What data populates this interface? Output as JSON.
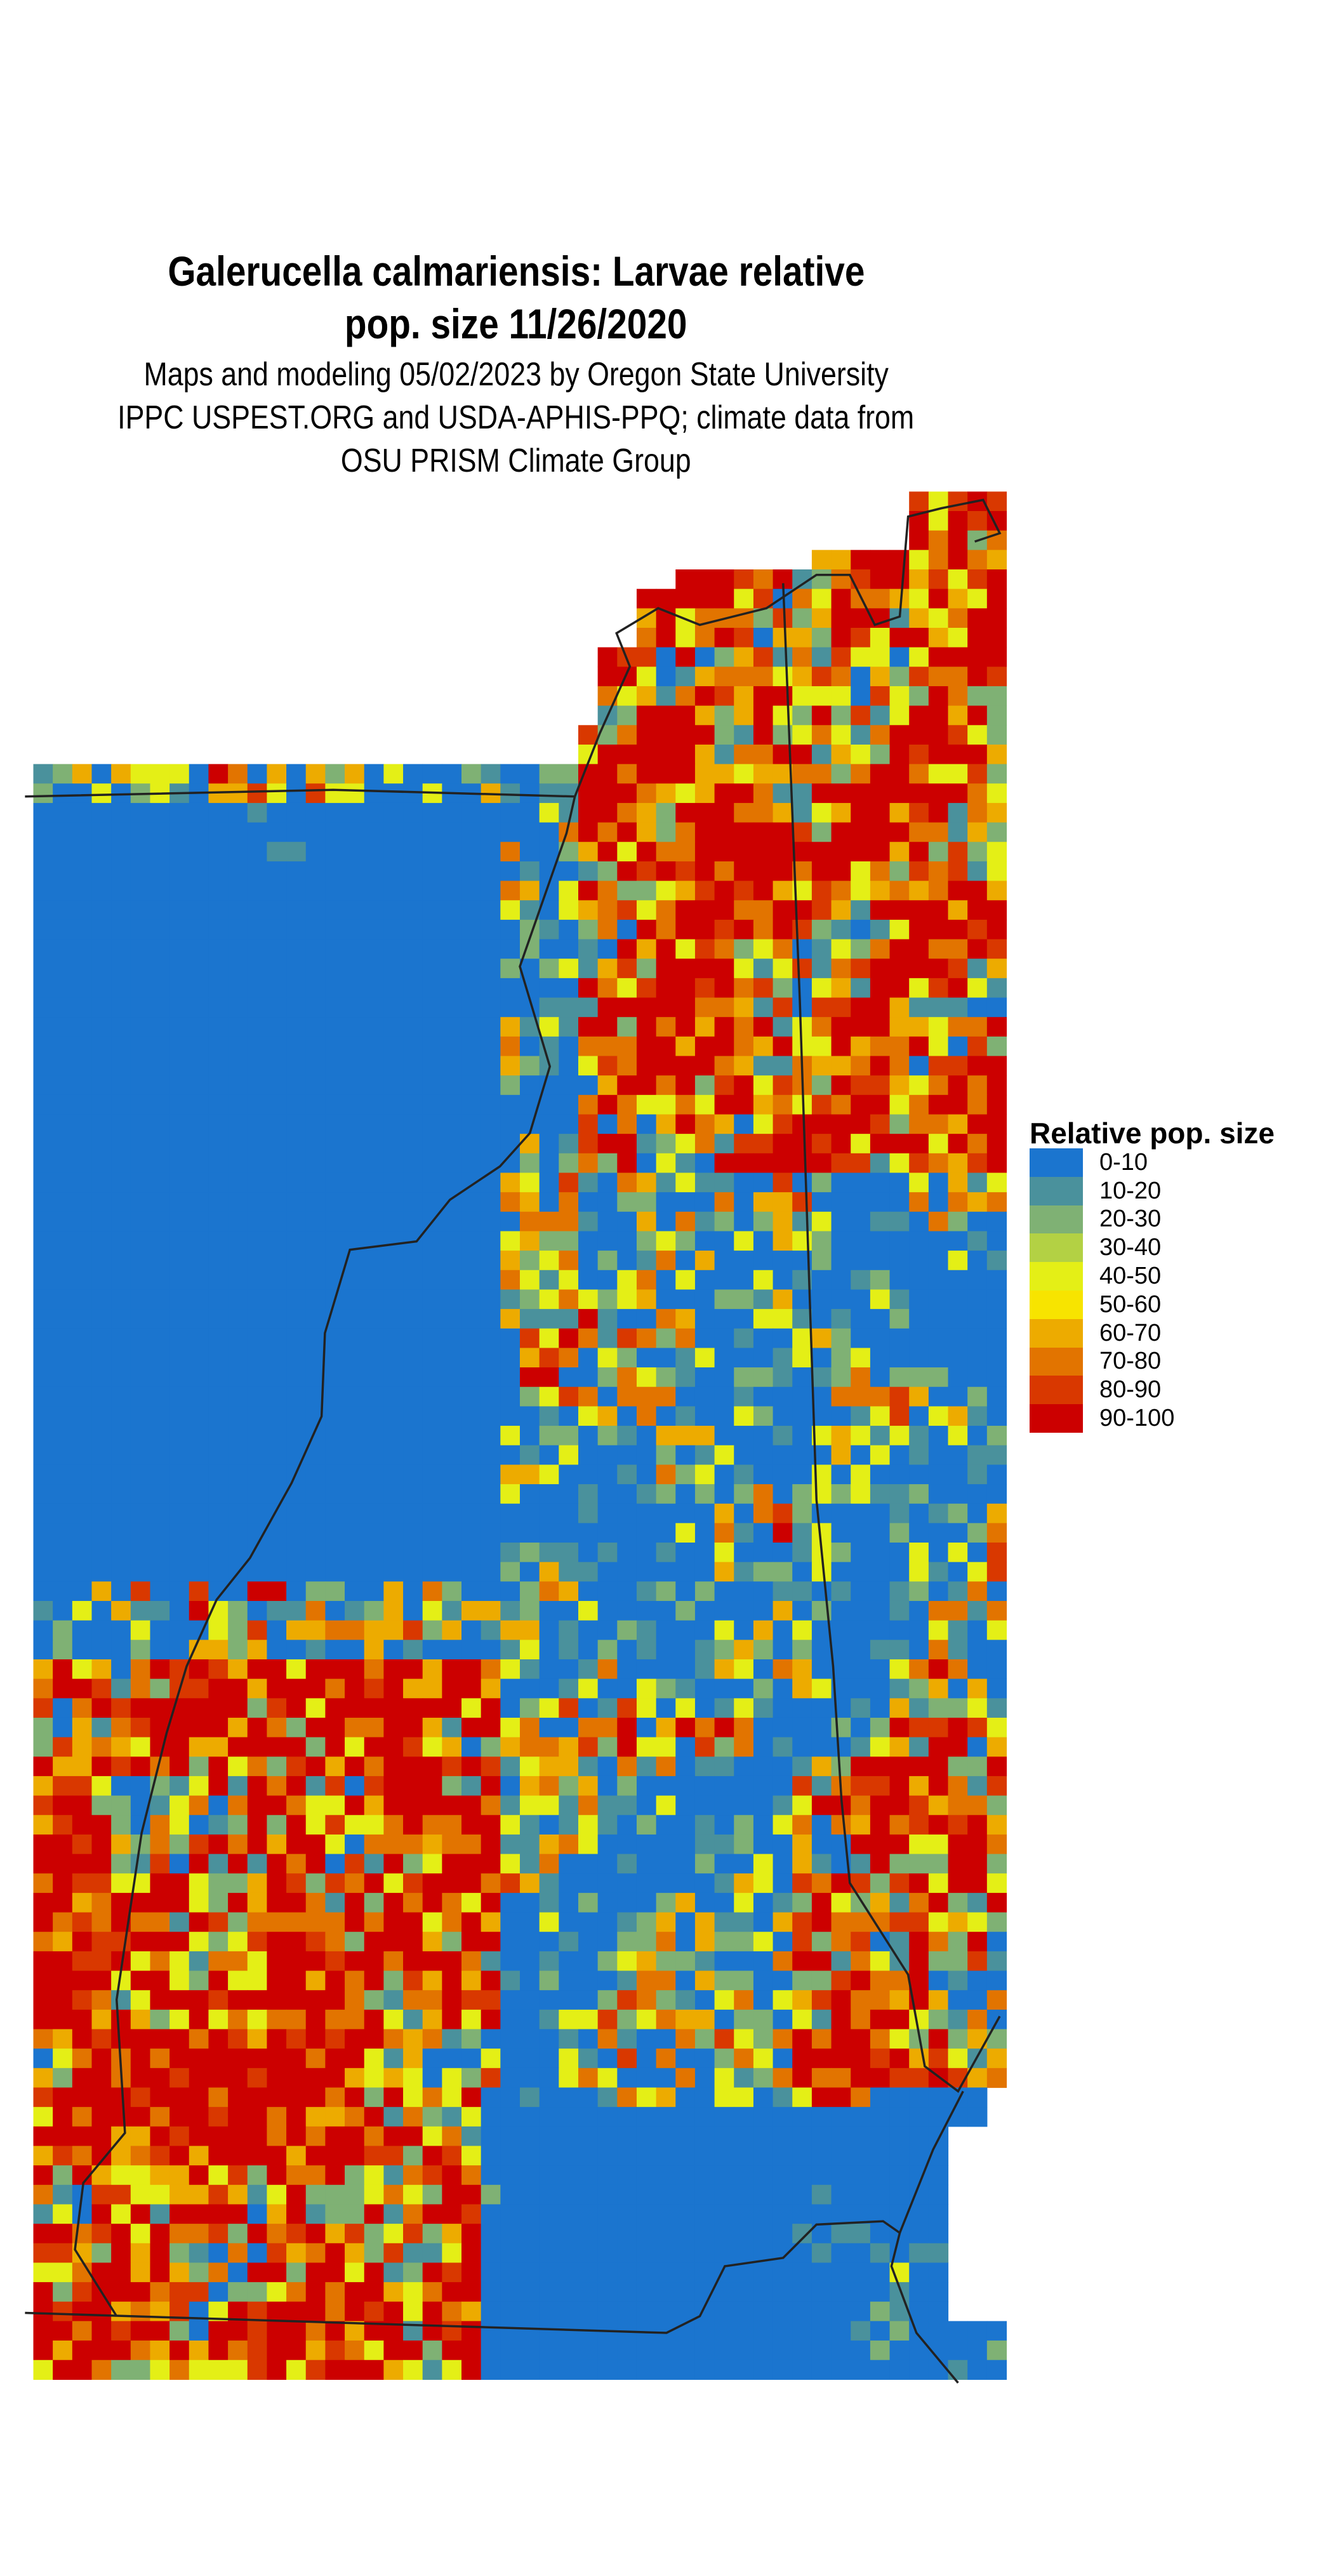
{
  "title": {
    "line1": "Galerucella calmariensis: Larvae relative",
    "line2": "pop. size 11/26/2020"
  },
  "subtitle": {
    "line1": "Maps and modeling 05/02/2023 by Oregon State University",
    "line2": "IPPC USPEST.ORG and USDA-APHIS-PPQ; climate data from",
    "line3": "OSU PRISM Climate Group"
  },
  "legend": {
    "title": "Relative pop. size",
    "items": [
      {
        "label": "0-10",
        "color": "#1b75cf"
      },
      {
        "label": "10-20",
        "color": "#4a919c"
      },
      {
        "label": "20-30",
        "color": "#7fb174"
      },
      {
        "label": "30-40",
        "color": "#b3d144"
      },
      {
        "label": "40-50",
        "color": "#e4ef16"
      },
      {
        "label": "50-60",
        "color": "#f7e400"
      },
      {
        "label": "60-70",
        "color": "#edab00"
      },
      {
        "label": "70-80",
        "color": "#e27400"
      },
      {
        "label": "80-90",
        "color": "#d93800"
      },
      {
        "label": "90-100",
        "color": "#cc0000"
      }
    ]
  },
  "chart_data": {
    "type": "heatmap",
    "title": "Galerucella calmariensis: Larvae relative pop. size 11/26/2020",
    "legend_title": "Relative pop. size",
    "bins": [
      "0-10",
      "10-20",
      "20-30",
      "30-40",
      "40-50",
      "50-60",
      "60-70",
      "70-80",
      "80-90",
      "90-100"
    ],
    "legend_placement": "right",
    "boundary_lines": true
  }
}
